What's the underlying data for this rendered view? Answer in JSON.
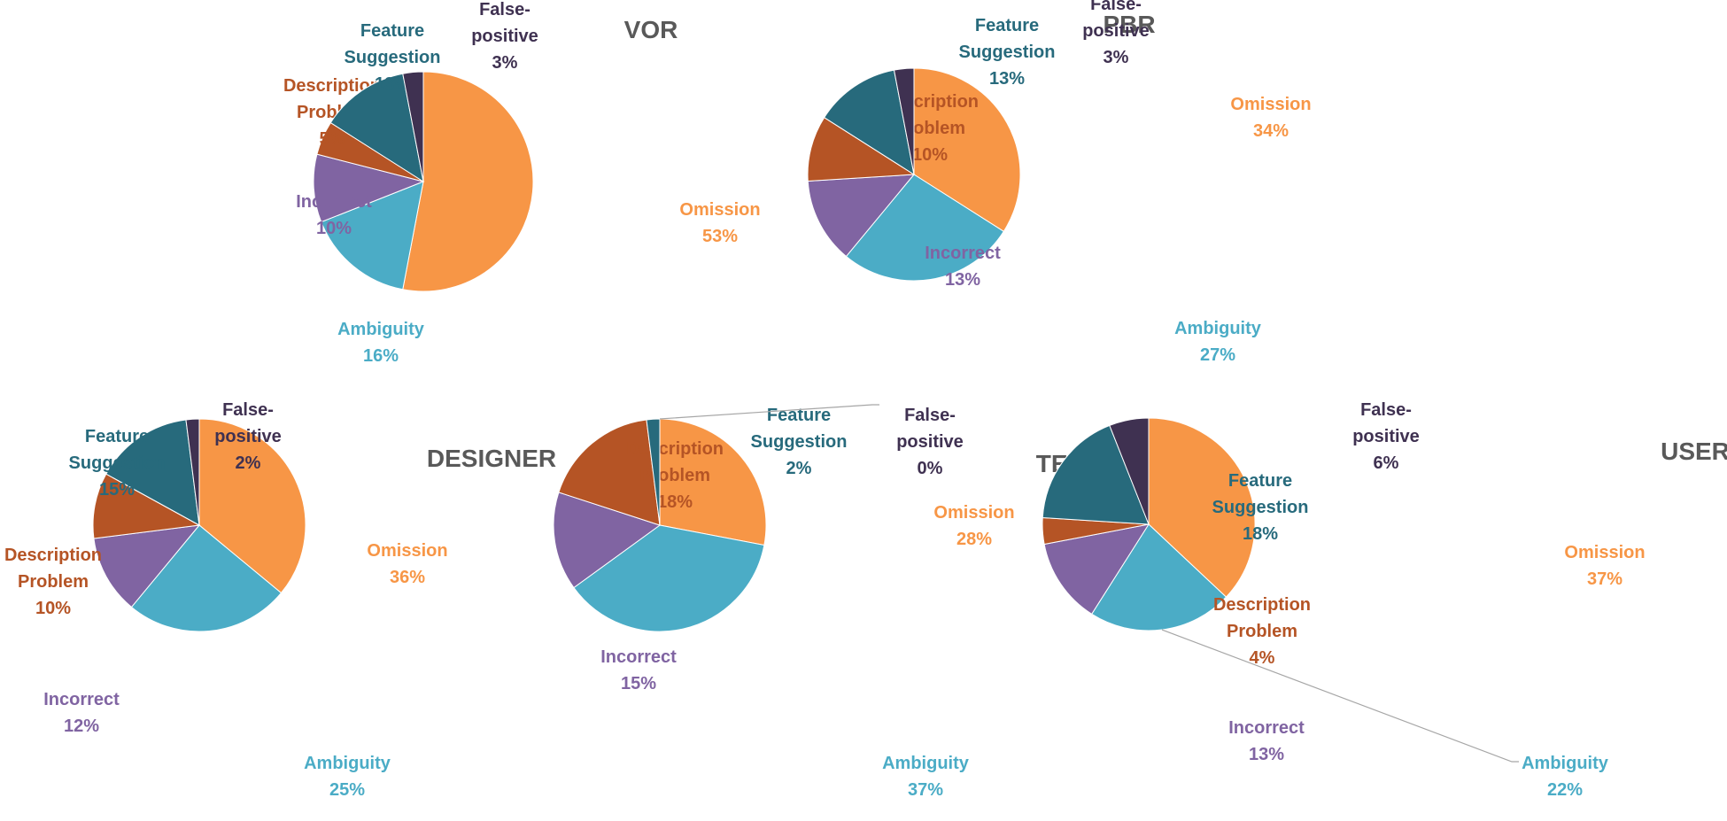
{
  "chart_data": [
    {
      "type": "pie",
      "title": "VOR",
      "slices": [
        {
          "label": "Omission",
          "value": 53,
          "pct": "53%",
          "color": "#f79646"
        },
        {
          "label": "Ambiguity",
          "value": 16,
          "pct": "16%",
          "color": "#4bacc6"
        },
        {
          "label": "Incorrect",
          "value": 10,
          "pct": "10%",
          "color": "#8064a2"
        },
        {
          "label": "Description Problem",
          "value": 5,
          "pct": "5%",
          "color": "#b55425"
        },
        {
          "label": "Feature Suggestion",
          "value": 13,
          "pct": "13%",
          "color": "#276a7c"
        },
        {
          "label": "False-positive",
          "value": 3,
          "pct": "3%",
          "color": "#3f3151"
        }
      ]
    },
    {
      "type": "pie",
      "title": "PBR",
      "slices": [
        {
          "label": "Omission",
          "value": 34,
          "pct": "34%",
          "color": "#f79646"
        },
        {
          "label": "Ambiguity",
          "value": 27,
          "pct": "27%",
          "color": "#4bacc6"
        },
        {
          "label": "Incorrect",
          "value": 13,
          "pct": "13%",
          "color": "#8064a2"
        },
        {
          "label": "Description Problem",
          "value": 10,
          "pct": "10%",
          "color": "#b55425"
        },
        {
          "label": "Feature Suggestion",
          "value": 13,
          "pct": "13%",
          "color": "#276a7c"
        },
        {
          "label": "False-positive",
          "value": 3,
          "pct": "3%",
          "color": "#3f3151"
        }
      ]
    },
    {
      "type": "pie",
      "title": "DESIGNER",
      "slices": [
        {
          "label": "Omission",
          "value": 36,
          "pct": "36%",
          "color": "#f79646"
        },
        {
          "label": "Ambiguity",
          "value": 25,
          "pct": "25%",
          "color": "#4bacc6"
        },
        {
          "label": "Incorrect",
          "value": 12,
          "pct": "12%",
          "color": "#8064a2"
        },
        {
          "label": "Description Problem",
          "value": 10,
          "pct": "10%",
          "color": "#b55425"
        },
        {
          "label": "Feature Suggestion",
          "value": 15,
          "pct": "15%",
          "color": "#276a7c"
        },
        {
          "label": "False-positive",
          "value": 2,
          "pct": "2%",
          "color": "#3f3151"
        }
      ]
    },
    {
      "type": "pie",
      "title": "TESTER",
      "slices": [
        {
          "label": "Omission",
          "value": 28,
          "pct": "28%",
          "color": "#f79646"
        },
        {
          "label": "Ambiguity",
          "value": 37,
          "pct": "37%",
          "color": "#4bacc6"
        },
        {
          "label": "Incorrect",
          "value": 15,
          "pct": "15%",
          "color": "#8064a2"
        },
        {
          "label": "Description Problem",
          "value": 18,
          "pct": "18%",
          "color": "#b55425"
        },
        {
          "label": "Feature Suggestion",
          "value": 2,
          "pct": "2%",
          "color": "#276a7c"
        },
        {
          "label": "False-positive",
          "value": 0,
          "pct": "0%",
          "color": "#3f3151"
        }
      ]
    },
    {
      "type": "pie",
      "title": "USER",
      "slices": [
        {
          "label": "Omission",
          "value": 37,
          "pct": "37%",
          "color": "#f79646"
        },
        {
          "label": "Ambiguity",
          "value": 22,
          "pct": "22%",
          "color": "#4bacc6"
        },
        {
          "label": "Incorrect",
          "value": 13,
          "pct": "13%",
          "color": "#8064a2"
        },
        {
          "label": "Description Problem",
          "value": 4,
          "pct": "4%",
          "color": "#b55425"
        },
        {
          "label": "Feature Suggestion",
          "value": 18,
          "pct": "18%",
          "color": "#276a7c"
        },
        {
          "label": "False-positive",
          "value": 6,
          "pct": "6%",
          "color": "#3f3151"
        }
      ]
    }
  ]
}
